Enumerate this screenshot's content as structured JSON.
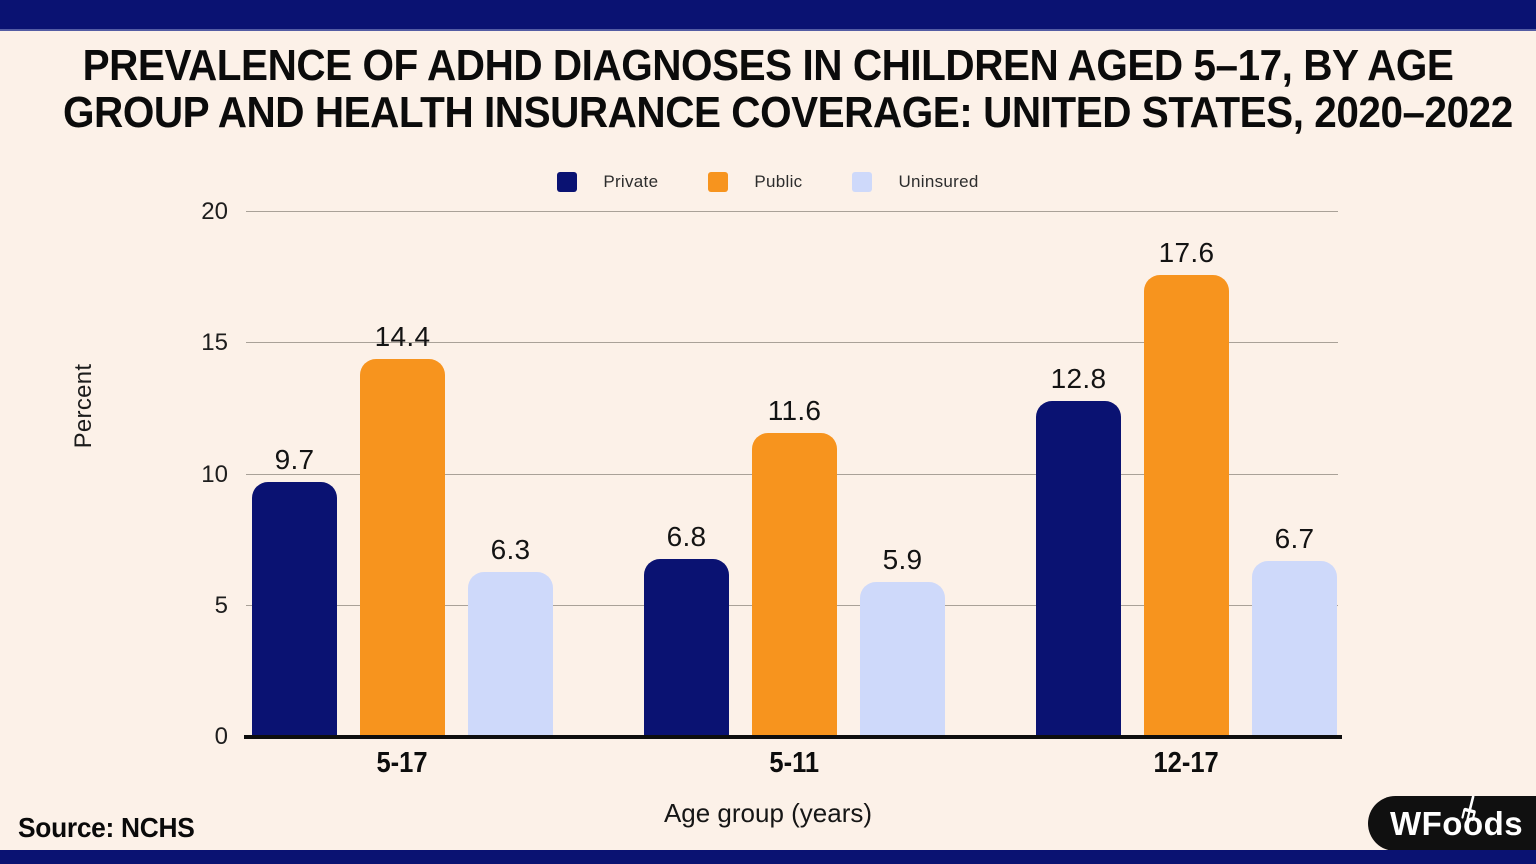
{
  "header": {
    "title_lines": [
      "PREVALENCE OF ADHD DIAGNOSES IN CHILDREN AGED 5–17, BY AGE",
      "GROUP AND HEALTH INSURANCE COVERAGE: UNITED STATES, 2020–2022"
    ]
  },
  "chart_data": {
    "type": "bar",
    "title": "Prevalence of ADHD diagnoses in children aged 5–17, by age group and health insurance coverage: United States, 2020–2022",
    "categories": [
      "5-17",
      "5-11",
      "12-17"
    ],
    "series": [
      {
        "name": "Private",
        "color": "#0A1272",
        "values": [
          9.7,
          6.8,
          12.8
        ]
      },
      {
        "name": "Public",
        "color": "#F7941E",
        "values": [
          14.4,
          11.6,
          17.6
        ]
      },
      {
        "name": "Uninsured",
        "color": "#CED9FA",
        "values": [
          6.3,
          5.9,
          6.7
        ]
      }
    ],
    "xlabel": "Age group (years)",
    "ylabel": "Percent",
    "ylim": [
      0,
      20
    ],
    "yticks": [
      0,
      5,
      10,
      15,
      20
    ],
    "grid": true,
    "legend_position": "top-center"
  },
  "footer": {
    "source_label": "Source: NCHS",
    "logo_text": "WFoods"
  },
  "colors": {
    "background": "#FCF1E8",
    "accent_navy": "#0A1272",
    "grid_line": "#A9A198",
    "axis_line": "#0E0E0E",
    "text": "#0D0D0D",
    "logo_bg": "#101010"
  }
}
